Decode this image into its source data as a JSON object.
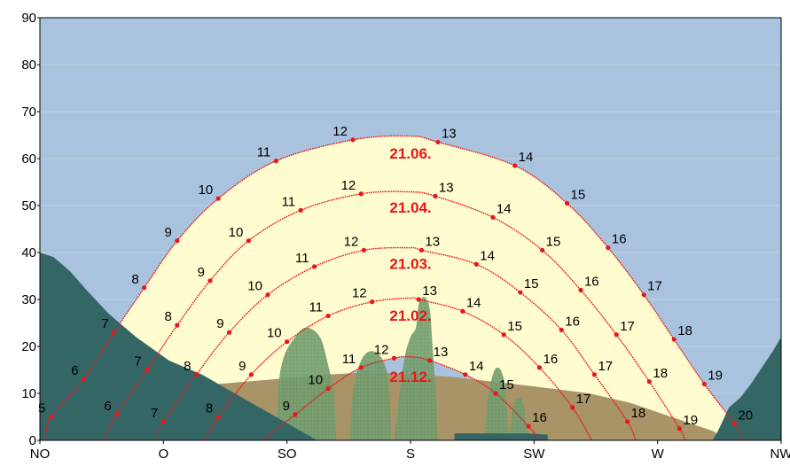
{
  "colors": {
    "sky": "#a9c3df",
    "sun_area": "#fffccf",
    "far_terrain": "#a89467",
    "trees": "#6f9a6a",
    "near_terrain": "#346666",
    "grid": "#c3d0de",
    "path": "#e8161a",
    "date_text": "#e8161a",
    "frame": "#000000"
  },
  "chart_data": {
    "type": "line",
    "title": "",
    "xlabel": "",
    "ylabel": "",
    "ylim": [
      0,
      90
    ],
    "xlim": [
      45,
      315
    ],
    "y_ticks": [
      0,
      10,
      20,
      30,
      40,
      50,
      60,
      70,
      80,
      90
    ],
    "x_ticks": [
      {
        "deg": 45,
        "label": "NO"
      },
      {
        "deg": 90,
        "label": "O"
      },
      {
        "deg": 135,
        "label": "SO"
      },
      {
        "deg": 180,
        "label": "S"
      },
      {
        "deg": 225,
        "label": "SW"
      },
      {
        "deg": 270,
        "label": "W"
      },
      {
        "deg": 315,
        "label": "NW"
      }
    ],
    "grid": true,
    "series": [
      {
        "name": "21.06.",
        "label_pos": [
          180,
          60
        ],
        "points": [
          {
            "hour": "5",
            "az": 49,
            "alt": 5
          },
          {
            "hour": "6",
            "az": 61,
            "alt": 13
          },
          {
            "hour": "7",
            "az": 72,
            "alt": 23
          },
          {
            "hour": "8",
            "az": 83,
            "alt": 32.5
          },
          {
            "hour": "9",
            "az": 95,
            "alt": 42.5
          },
          {
            "hour": "10",
            "az": 110,
            "alt": 51.5
          },
          {
            "hour": "11",
            "az": 131,
            "alt": 59.5
          },
          {
            "hour": "12",
            "az": 159,
            "alt": 64
          },
          {
            "hour": "13",
            "az": 190,
            "alt": 63.5
          },
          {
            "hour": "14",
            "az": 218,
            "alt": 58.5
          },
          {
            "hour": "15",
            "az": 237,
            "alt": 50.5
          },
          {
            "hour": "16",
            "az": 252,
            "alt": 41
          },
          {
            "hour": "17",
            "az": 265,
            "alt": 31
          },
          {
            "hour": "18",
            "az": 276,
            "alt": 21.5
          },
          {
            "hour": "19",
            "az": 287,
            "alt": 12
          },
          {
            "hour": "20",
            "az": 298,
            "alt": 3.5
          }
        ],
        "path": [
          [
            47,
            0
          ],
          [
            49,
            5
          ],
          [
            61,
            13
          ],
          [
            72,
            23
          ],
          [
            83,
            32.5
          ],
          [
            95,
            42.5
          ],
          [
            110,
            51.5
          ],
          [
            131,
            59.5
          ],
          [
            159,
            64
          ],
          [
            180,
            64.8
          ],
          [
            190,
            63.5
          ],
          [
            218,
            58.5
          ],
          [
            237,
            50.5
          ],
          [
            252,
            41
          ],
          [
            265,
            31
          ],
          [
            276,
            21.5
          ],
          [
            287,
            12
          ],
          [
            298,
            3.5
          ],
          [
            301,
            0
          ]
        ]
      },
      {
        "name": "21.04.",
        "label_pos": [
          180,
          48.5
        ],
        "points": [
          {
            "hour": "6",
            "az": 73,
            "alt": 5.5
          },
          {
            "hour": "7",
            "az": 84,
            "alt": 15
          },
          {
            "hour": "8",
            "az": 95,
            "alt": 24.5
          },
          {
            "hour": "9",
            "az": 107,
            "alt": 34
          },
          {
            "hour": "10",
            "az": 121,
            "alt": 42.5
          },
          {
            "hour": "11",
            "az": 140,
            "alt": 49
          },
          {
            "hour": "12",
            "az": 162,
            "alt": 52.5
          },
          {
            "hour": "13",
            "az": 189,
            "alt": 52
          },
          {
            "hour": "14",
            "az": 210,
            "alt": 47.5
          },
          {
            "hour": "15",
            "az": 228,
            "alt": 40.5
          },
          {
            "hour": "16",
            "az": 242,
            "alt": 32
          },
          {
            "hour": "17",
            "az": 255,
            "alt": 22.5
          },
          {
            "hour": "18",
            "az": 267,
            "alt": 12.5
          },
          {
            "hour": "19",
            "az": 278,
            "alt": 2.5
          }
        ],
        "path": [
          [
            68,
            0
          ],
          [
            73,
            5.5
          ],
          [
            84,
            15
          ],
          [
            95,
            24.5
          ],
          [
            107,
            34
          ],
          [
            121,
            42.5
          ],
          [
            140,
            49
          ],
          [
            162,
            52.5
          ],
          [
            180,
            52.9
          ],
          [
            189,
            52
          ],
          [
            210,
            47.5
          ],
          [
            228,
            40.5
          ],
          [
            242,
            32
          ],
          [
            255,
            22.5
          ],
          [
            267,
            12.5
          ],
          [
            278,
            2.5
          ],
          [
            280,
            0
          ]
        ]
      },
      {
        "name": "21.03.",
        "label_pos": [
          180,
          36.5
        ],
        "points": [
          {
            "hour": "7",
            "az": 90,
            "alt": 4
          },
          {
            "hour": "8",
            "az": 102,
            "alt": 14
          },
          {
            "hour": "9",
            "az": 114,
            "alt": 23
          },
          {
            "hour": "10",
            "az": 128,
            "alt": 31
          },
          {
            "hour": "11",
            "az": 145,
            "alt": 37
          },
          {
            "hour": "12",
            "az": 163,
            "alt": 40.5
          },
          {
            "hour": "13",
            "az": 184,
            "alt": 40.5
          },
          {
            "hour": "14",
            "az": 204,
            "alt": 37.5
          },
          {
            "hour": "15",
            "az": 220,
            "alt": 31.5
          },
          {
            "hour": "16",
            "az": 235,
            "alt": 23.5
          },
          {
            "hour": "17",
            "az": 247,
            "alt": 14
          },
          {
            "hour": "18",
            "az": 259,
            "alt": 4
          }
        ],
        "path": [
          [
            87,
            0
          ],
          [
            90,
            4
          ],
          [
            102,
            14
          ],
          [
            114,
            23
          ],
          [
            128,
            31
          ],
          [
            145,
            37
          ],
          [
            163,
            40.5
          ],
          [
            180,
            41
          ],
          [
            184,
            40.5
          ],
          [
            204,
            37.5
          ],
          [
            220,
            31.5
          ],
          [
            235,
            23.5
          ],
          [
            247,
            14
          ],
          [
            259,
            4
          ],
          [
            262,
            0
          ]
        ]
      },
      {
        "name": "21.02.",
        "label_pos": [
          180,
          25.5
        ],
        "points": [
          {
            "hour": "8",
            "az": 110,
            "alt": 5
          },
          {
            "hour": "9",
            "az": 122,
            "alt": 14
          },
          {
            "hour": "10",
            "az": 135,
            "alt": 21
          },
          {
            "hour": "11",
            "az": 150,
            "alt": 26.5
          },
          {
            "hour": "12",
            "az": 166,
            "alt": 29.5
          },
          {
            "hour": "13",
            "az": 183,
            "alt": 30
          },
          {
            "hour": "14",
            "az": 199,
            "alt": 27.5
          },
          {
            "hour": "15",
            "az": 214,
            "alt": 22.5
          },
          {
            "hour": "16",
            "az": 227,
            "alt": 15.5
          },
          {
            "hour": "17",
            "az": 239,
            "alt": 7
          }
        ],
        "path": [
          [
            105,
            0
          ],
          [
            110,
            5
          ],
          [
            122,
            14
          ],
          [
            135,
            21
          ],
          [
            150,
            26.5
          ],
          [
            166,
            29.5
          ],
          [
            180,
            30.3
          ],
          [
            183,
            30
          ],
          [
            199,
            27.5
          ],
          [
            214,
            22.5
          ],
          [
            227,
            15.5
          ],
          [
            239,
            7
          ],
          [
            246,
            0
          ]
        ]
      },
      {
        "name": "21.12.",
        "label_pos": [
          180,
          12.5
        ],
        "points": [
          {
            "hour": "9",
            "az": 138,
            "alt": 5.5
          },
          {
            "hour": "10",
            "az": 150,
            "alt": 11
          },
          {
            "hour": "11",
            "az": 162,
            "alt": 15.5
          },
          {
            "hour": "12",
            "az": 174,
            "alt": 17.5
          },
          {
            "hour": "13",
            "az": 187,
            "alt": 17
          },
          {
            "hour": "14",
            "az": 200,
            "alt": 14
          },
          {
            "hour": "15",
            "az": 211,
            "alt": 10
          },
          {
            "hour": "16",
            "az": 223,
            "alt": 3
          }
        ],
        "path": [
          [
            126,
            0
          ],
          [
            138,
            5.5
          ],
          [
            150,
            11
          ],
          [
            162,
            15.5
          ],
          [
            174,
            17.5
          ],
          [
            180,
            17.8
          ],
          [
            187,
            17
          ],
          [
            200,
            14
          ],
          [
            211,
            10
          ],
          [
            223,
            3
          ],
          [
            227,
            0
          ]
        ]
      }
    ]
  }
}
